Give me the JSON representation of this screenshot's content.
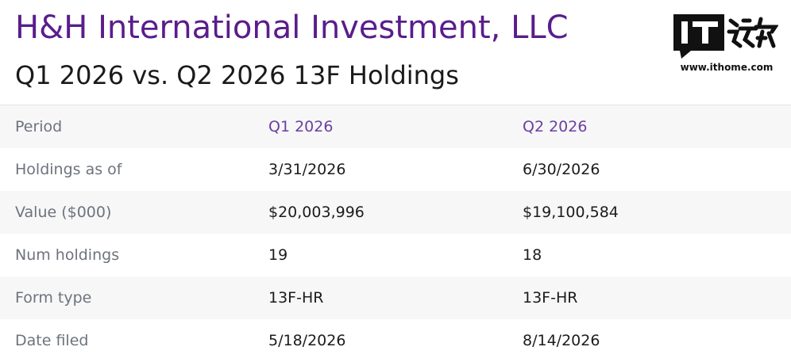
{
  "header": {
    "title": "H&H International Investment, LLC",
    "subtitle": "Q1 2026 vs. Q2 2026 13F Holdings"
  },
  "watermark": {
    "logo_text": "IT之家",
    "url": "www.ithome.com"
  },
  "table": {
    "header": {
      "label": "Period",
      "q1": "Q1 2026",
      "q2": "Q2 2026"
    },
    "rows": [
      {
        "label": "Holdings as of",
        "q1": "3/31/2026",
        "q2": "6/30/2026"
      },
      {
        "label": "Value ($000)",
        "q1": "$20,003,996",
        "q2": "$19,100,584"
      },
      {
        "label": "Num holdings",
        "q1": "19",
        "q2": "18"
      },
      {
        "label": "Form type",
        "q1": "13F-HR",
        "q2": "13F-HR"
      },
      {
        "label": "Date filed",
        "q1": "5/18/2026",
        "q2": "8/14/2026"
      }
    ]
  },
  "colors": {
    "title": "#5a1d8c",
    "period_header": "#6a3fa3",
    "row_label": "#6e737c",
    "row_shade": "#f7f7f8"
  }
}
